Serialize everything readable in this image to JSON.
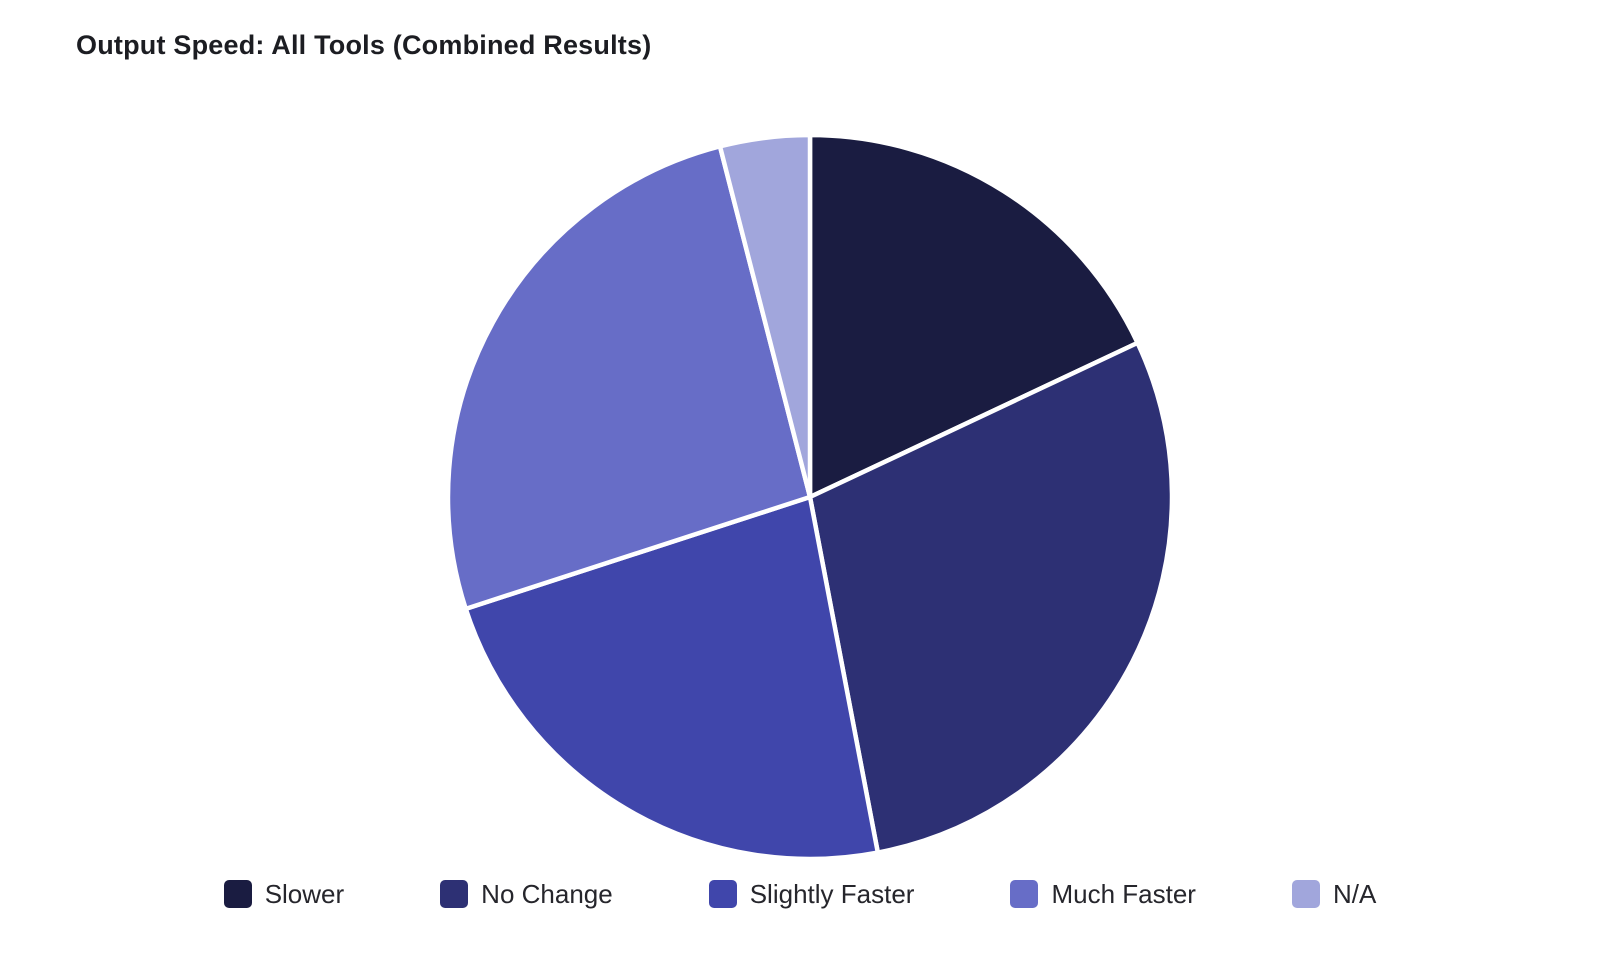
{
  "header": {
    "title": "Output Speed: All Tools (Combined Results)"
  },
  "chart_data": {
    "type": "pie",
    "title": "Output Speed: All Tools (Combined Results)",
    "categories": [
      "Slower",
      "No Change",
      "Slightly Faster",
      "Much Faster",
      "N/A"
    ],
    "values": [
      18,
      29,
      23,
      26,
      4
    ],
    "unit": "percent (estimated from slice angles; no numeric labels shown)",
    "colors": [
      "#1a1c41",
      "#2d3074",
      "#4046ab",
      "#676dc7",
      "#a1a6dc"
    ],
    "start_angle_deg": 0,
    "direction": "clockwise",
    "separator_color": "#ffffff",
    "legend_position": "bottom",
    "background": "#ffffff"
  }
}
